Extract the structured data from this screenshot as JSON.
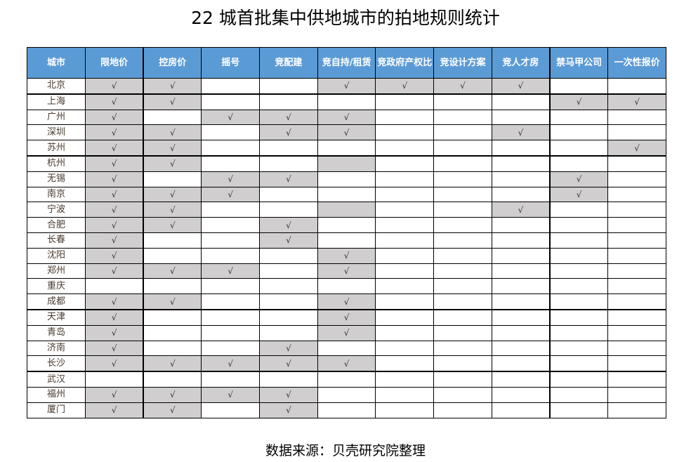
{
  "title": "22 城首批集中供地城市的拍地规则统计",
  "headers": [
    "城市",
    "限地价",
    "控房价",
    "摇号",
    "竞配建",
    "竞自持/租赁",
    "竞政府产权比",
    "竞设计方案",
    "竞人才房",
    "禁马甲公司",
    "一次性报价"
  ],
  "colors": {
    "header": "#5b9bd5",
    "shaded": "#d0cece"
  },
  "rows": [
    {
      "city": "北京",
      "cells": [
        "√",
        "√",
        "",
        "",
        "√",
        "√",
        "√",
        "√",
        "",
        ""
      ],
      "shaded": [
        1,
        1,
        0,
        0,
        1,
        1,
        1,
        1,
        0,
        0
      ]
    },
    {
      "city": "上海",
      "cells": [
        "√",
        "√",
        "",
        "",
        "",
        "",
        "",
        "",
        "√",
        "√"
      ],
      "shaded": [
        1,
        1,
        0,
        0,
        0,
        0,
        0,
        0,
        1,
        1
      ]
    },
    {
      "city": "广州",
      "cells": [
        "√",
        "",
        "√",
        "√",
        "√",
        "",
        "",
        "",
        "",
        ""
      ],
      "shaded": [
        1,
        0,
        1,
        1,
        1,
        0,
        0,
        0,
        0,
        0
      ]
    },
    {
      "city": "深圳",
      "cells": [
        "√",
        "√",
        "",
        "√",
        "√",
        "",
        "",
        "√",
        "",
        ""
      ],
      "shaded": [
        1,
        1,
        0,
        1,
        1,
        0,
        0,
        1,
        0,
        0
      ]
    },
    {
      "city": "苏州",
      "cells": [
        "√",
        "√",
        "",
        "",
        "",
        "",
        "",
        "",
        "",
        "√"
      ],
      "shaded": [
        1,
        1,
        0,
        0,
        0,
        0,
        0,
        0,
        0,
        1
      ]
    },
    {
      "city": "杭州",
      "cells": [
        "√",
        "√",
        "",
        "",
        "",
        "",
        "",
        "",
        "",
        ""
      ],
      "shaded": [
        1,
        1,
        0,
        0,
        1,
        0,
        0,
        0,
        0,
        0
      ]
    },
    {
      "city": "无锡",
      "cells": [
        "√",
        "",
        "√",
        "√",
        "",
        "",
        "",
        "",
        "√",
        ""
      ],
      "shaded": [
        1,
        0,
        1,
        1,
        0,
        0,
        0,
        0,
        1,
        0
      ]
    },
    {
      "city": "南京",
      "cells": [
        "√",
        "√",
        "√",
        "",
        "",
        "",
        "",
        "",
        "√",
        ""
      ],
      "shaded": [
        1,
        1,
        1,
        0,
        0,
        0,
        0,
        0,
        1,
        0
      ]
    },
    {
      "city": "宁波",
      "cells": [
        "√",
        "√",
        "",
        "",
        "",
        "",
        "",
        "√",
        "",
        ""
      ],
      "shaded": [
        1,
        1,
        0,
        0,
        1,
        0,
        0,
        1,
        0,
        0
      ]
    },
    {
      "city": "合肥",
      "cells": [
        "√",
        "√",
        "",
        "√",
        "",
        "",
        "",
        "",
        "",
        ""
      ],
      "shaded": [
        1,
        1,
        0,
        1,
        0,
        0,
        0,
        0,
        0,
        0
      ]
    },
    {
      "city": "长春",
      "cells": [
        "√",
        "",
        "",
        "√",
        "",
        "",
        "",
        "",
        "",
        ""
      ],
      "shaded": [
        1,
        0,
        0,
        1,
        0,
        0,
        0,
        0,
        0,
        0
      ]
    },
    {
      "city": "沈阳",
      "cells": [
        "√",
        "",
        "",
        "",
        "√",
        "",
        "",
        "",
        "",
        ""
      ],
      "shaded": [
        1,
        0,
        0,
        0,
        1,
        0,
        0,
        0,
        0,
        0
      ]
    },
    {
      "city": "郑州",
      "cells": [
        "√",
        "√",
        "√",
        "",
        "√",
        "",
        "",
        "",
        "",
        ""
      ],
      "shaded": [
        1,
        1,
        1,
        0,
        1,
        0,
        0,
        0,
        0,
        0
      ]
    },
    {
      "city": "重庆",
      "cells": [
        "",
        "",
        "",
        "",
        "",
        "",
        "",
        "",
        "",
        ""
      ],
      "shaded": [
        0,
        0,
        0,
        0,
        0,
        0,
        0,
        0,
        0,
        0
      ]
    },
    {
      "city": "成都",
      "cells": [
        "√",
        "√",
        "",
        "",
        "√",
        "",
        "",
        "",
        "",
        ""
      ],
      "shaded": [
        1,
        1,
        0,
        0,
        1,
        0,
        0,
        0,
        0,
        0
      ]
    },
    {
      "city": "天津",
      "cells": [
        "√",
        "",
        "",
        "",
        "√",
        "",
        "",
        "",
        "",
        ""
      ],
      "shaded": [
        1,
        0,
        0,
        0,
        1,
        0,
        0,
        0,
        0,
        0
      ]
    },
    {
      "city": "青岛",
      "cells": [
        "√",
        "",
        "",
        "",
        "√",
        "",
        "",
        "",
        "",
        ""
      ],
      "shaded": [
        1,
        0,
        0,
        0,
        1,
        0,
        0,
        0,
        0,
        0
      ]
    },
    {
      "city": "济南",
      "cells": [
        "√",
        "",
        "",
        "√",
        "",
        "",
        "",
        "",
        "",
        ""
      ],
      "shaded": [
        1,
        0,
        0,
        1,
        0,
        0,
        0,
        0,
        0,
        0
      ]
    },
    {
      "city": "长沙",
      "cells": [
        "√",
        "√",
        "√",
        "√",
        "√",
        "",
        "",
        "",
        "",
        ""
      ],
      "shaded": [
        1,
        1,
        1,
        1,
        1,
        0,
        0,
        0,
        0,
        0
      ]
    },
    {
      "city": "武汉",
      "cells": [
        "",
        "",
        "",
        "",
        "",
        "",
        "",
        "",
        "",
        ""
      ],
      "shaded": [
        0,
        0,
        0,
        0,
        0,
        0,
        0,
        0,
        0,
        0
      ]
    },
    {
      "city": "福州",
      "cells": [
        "√",
        "√",
        "√",
        "√",
        "",
        "",
        "",
        "",
        "",
        ""
      ],
      "shaded": [
        1,
        1,
        1,
        1,
        0,
        0,
        0,
        0,
        0,
        0
      ]
    },
    {
      "city": "厦门",
      "cells": [
        "√",
        "√",
        "",
        "√",
        "",
        "",
        "",
        "",
        "",
        ""
      ],
      "shaded": [
        1,
        1,
        0,
        1,
        0,
        0,
        0,
        0,
        0,
        0
      ]
    }
  ],
  "footer": "数据来源：贝壳研究院整理"
}
